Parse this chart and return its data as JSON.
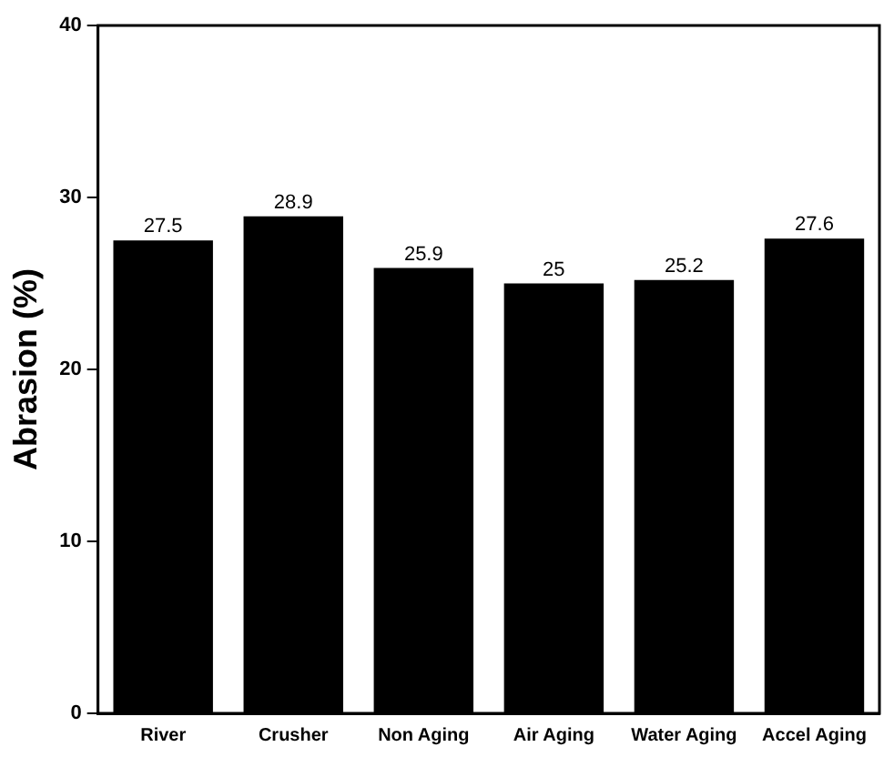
{
  "chart_data": {
    "type": "bar",
    "ylabel": "Abrasion (%)",
    "categories": [
      "River",
      "Crusher",
      "Non Aging",
      "Air Aging",
      "Water Aging",
      "Accel Aging"
    ],
    "values": [
      27.5,
      28.9,
      25.9,
      25,
      25.2,
      27.6
    ],
    "color": "#000000",
    "ylim": [
      0,
      40
    ],
    "yticks": [
      0,
      10,
      20,
      30,
      40
    ],
    "grid": false,
    "legend": false,
    "data_labels": true
  }
}
